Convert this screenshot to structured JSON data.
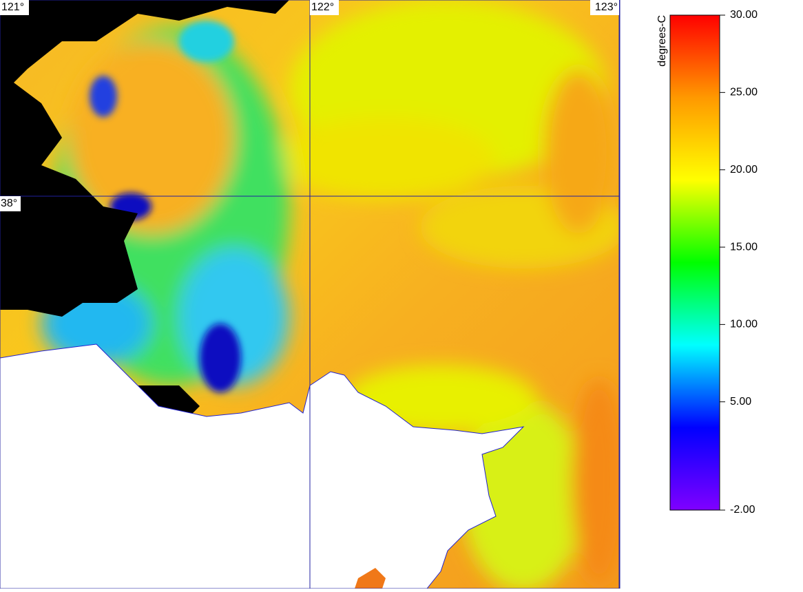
{
  "map": {
    "xlim": [
      121,
      123
    ],
    "ylim": [
      37.0,
      38.5
    ],
    "xticks": [
      {
        "value": 121,
        "label": "121°"
      },
      {
        "value": 122,
        "label": "122°"
      },
      {
        "value": 123,
        "label": "123°"
      }
    ],
    "yticks": [
      {
        "value": 38,
        "label": "38°"
      }
    ]
  },
  "colorbar": {
    "title": "degrees-C",
    "ylim": [
      -2,
      30
    ],
    "yticks": [
      {
        "value": 30,
        "label": "30.00"
      },
      {
        "value": 25,
        "label": "25.00"
      },
      {
        "value": 20,
        "label": "20.00"
      },
      {
        "value": 15,
        "label": "15.00"
      },
      {
        "value": 10,
        "label": "10.00"
      },
      {
        "value": 5,
        "label": "5.00"
      },
      {
        "value": -2,
        "label": "-2.00"
      }
    ],
    "colors": [
      "#8000ff",
      "#0000ff",
      "#00ffff",
      "#00ff00",
      "#ffff00",
      "#ff9900",
      "#ff0000"
    ]
  }
}
